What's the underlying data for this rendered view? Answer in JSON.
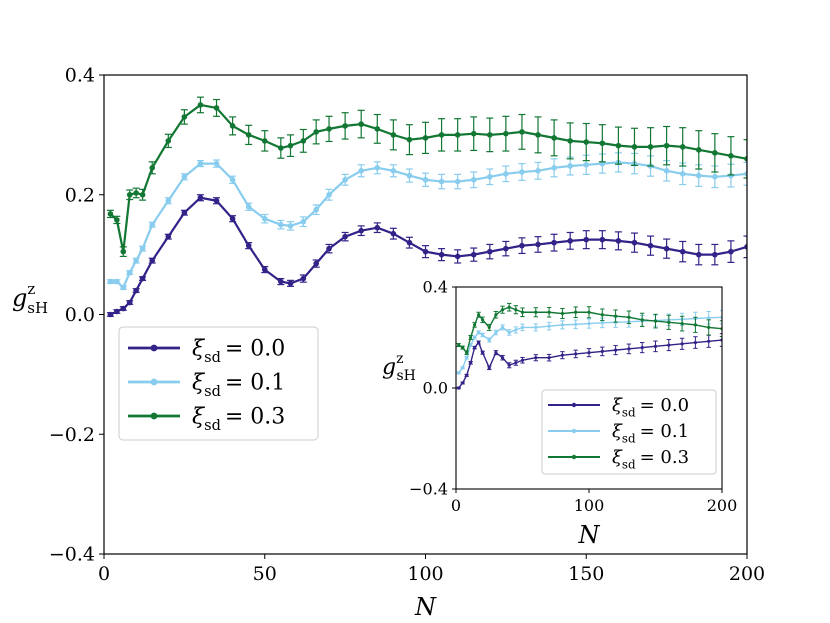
{
  "chart_data": [
    {
      "type": "line",
      "role": "main",
      "xlabel": "N",
      "ylabel": "g",
      "ylabel_sup": "z",
      "ylabel_sub": "sH",
      "xlim": [
        0,
        200
      ],
      "ylim": [
        -0.4,
        0.4
      ],
      "xticks": [
        0,
        50,
        100,
        150,
        200
      ],
      "xtick_labels": [
        "0",
        "50",
        "100",
        "150",
        "200"
      ],
      "yticks": [
        -0.4,
        -0.2,
        0.0,
        0.2,
        0.4
      ],
      "ytick_labels": [
        "−0.4",
        "−0.2",
        "0.0",
        "0.2",
        "0.4"
      ],
      "legend_location": "center-left",
      "series": [
        {
          "name": "ξ_sd = 0.0",
          "symbol": "ξ",
          "subscript": "sd",
          "value_text": "= 0.0",
          "color": "#332288",
          "x": [
            2,
            4,
            6,
            8,
            10,
            12,
            15,
            20,
            25,
            30,
            35,
            40,
            45,
            50,
            55,
            58,
            62,
            66,
            70,
            75,
            80,
            85,
            90,
            95,
            100,
            105,
            110,
            115,
            120,
            125,
            130,
            135,
            140,
            145,
            150,
            155,
            160,
            165,
            170,
            175,
            180,
            185,
            190,
            195,
            200
          ],
          "y": [
            0.0,
            0.005,
            0.01,
            0.02,
            0.04,
            0.06,
            0.09,
            0.13,
            0.17,
            0.195,
            0.19,
            0.16,
            0.115,
            0.075,
            0.055,
            0.052,
            0.06,
            0.085,
            0.11,
            0.13,
            0.14,
            0.145,
            0.135,
            0.12,
            0.105,
            0.1,
            0.097,
            0.1,
            0.105,
            0.11,
            0.115,
            0.117,
            0.12,
            0.123,
            0.125,
            0.125,
            0.123,
            0.12,
            0.115,
            0.11,
            0.105,
            0.1,
            0.1,
            0.105,
            0.113
          ],
          "err": [
            0.003,
            0.003,
            0.003,
            0.003,
            0.003,
            0.003,
            0.004,
            0.004,
            0.004,
            0.005,
            0.005,
            0.005,
            0.005,
            0.005,
            0.005,
            0.005,
            0.006,
            0.006,
            0.007,
            0.007,
            0.008,
            0.008,
            0.009,
            0.009,
            0.01,
            0.01,
            0.011,
            0.011,
            0.012,
            0.012,
            0.013,
            0.013,
            0.014,
            0.014,
            0.015,
            0.015,
            0.015,
            0.016,
            0.016,
            0.016,
            0.017,
            0.017,
            0.017,
            0.018,
            0.018
          ]
        },
        {
          "name": "ξ_sd = 0.1",
          "symbol": "ξ",
          "subscript": "sd",
          "value_text": "= 0.1",
          "color": "#88CCEE",
          "x": [
            2,
            4,
            6,
            8,
            10,
            12,
            15,
            20,
            25,
            30,
            35,
            40,
            45,
            50,
            55,
            58,
            62,
            66,
            70,
            75,
            80,
            85,
            90,
            95,
            100,
            105,
            110,
            115,
            120,
            125,
            130,
            135,
            140,
            145,
            150,
            155,
            160,
            165,
            170,
            175,
            180,
            185,
            190,
            195,
            200
          ],
          "y": [
            0.055,
            0.055,
            0.045,
            0.07,
            0.09,
            0.11,
            0.15,
            0.19,
            0.23,
            0.252,
            0.252,
            0.225,
            0.18,
            0.16,
            0.15,
            0.148,
            0.155,
            0.175,
            0.2,
            0.225,
            0.24,
            0.245,
            0.24,
            0.232,
            0.225,
            0.222,
            0.222,
            0.225,
            0.23,
            0.235,
            0.238,
            0.24,
            0.245,
            0.248,
            0.25,
            0.252,
            0.254,
            0.252,
            0.248,
            0.24,
            0.235,
            0.232,
            0.23,
            0.232,
            0.235
          ],
          "err": [
            0.003,
            0.003,
            0.003,
            0.003,
            0.004,
            0.004,
            0.004,
            0.005,
            0.005,
            0.005,
            0.006,
            0.006,
            0.006,
            0.007,
            0.007,
            0.007,
            0.008,
            0.008,
            0.009,
            0.009,
            0.01,
            0.01,
            0.01,
            0.011,
            0.011,
            0.012,
            0.012,
            0.013,
            0.013,
            0.013,
            0.014,
            0.014,
            0.015,
            0.015,
            0.016,
            0.016,
            0.016,
            0.017,
            0.017,
            0.017,
            0.018,
            0.018,
            0.018,
            0.019,
            0.019
          ]
        },
        {
          "name": "ξ_sd = 0.3",
          "symbol": "ξ",
          "subscript": "sd",
          "value_text": "= 0.3",
          "color": "#117733",
          "x": [
            2,
            4,
            6,
            8,
            10,
            12,
            15,
            20,
            25,
            30,
            35,
            40,
            45,
            50,
            55,
            58,
            62,
            66,
            70,
            75,
            80,
            85,
            90,
            95,
            100,
            105,
            110,
            115,
            120,
            125,
            130,
            135,
            140,
            145,
            150,
            155,
            160,
            165,
            170,
            175,
            180,
            185,
            190,
            195,
            200
          ],
          "y": [
            0.168,
            0.158,
            0.105,
            0.2,
            0.203,
            0.2,
            0.245,
            0.29,
            0.33,
            0.35,
            0.345,
            0.315,
            0.3,
            0.29,
            0.278,
            0.282,
            0.29,
            0.305,
            0.31,
            0.315,
            0.318,
            0.31,
            0.3,
            0.292,
            0.295,
            0.3,
            0.3,
            0.302,
            0.3,
            0.302,
            0.305,
            0.3,
            0.295,
            0.29,
            0.288,
            0.286,
            0.282,
            0.28,
            0.28,
            0.282,
            0.28,
            0.275,
            0.27,
            0.265,
            0.26
          ],
          "err": [
            0.006,
            0.006,
            0.008,
            0.008,
            0.008,
            0.009,
            0.01,
            0.011,
            0.012,
            0.013,
            0.014,
            0.015,
            0.016,
            0.017,
            0.017,
            0.018,
            0.019,
            0.02,
            0.021,
            0.022,
            0.023,
            0.024,
            0.025,
            0.025,
            0.026,
            0.027,
            0.027,
            0.028,
            0.028,
            0.029,
            0.029,
            0.03,
            0.03,
            0.03,
            0.031,
            0.031,
            0.031,
            0.031,
            0.032,
            0.032,
            0.032,
            0.032,
            0.032,
            0.032,
            0.032
          ]
        }
      ]
    },
    {
      "type": "line",
      "role": "inset",
      "xlabel": "N",
      "ylabel": "g",
      "ylabel_sup": "z",
      "ylabel_sub": "sH",
      "xlim": [
        0,
        200
      ],
      "ylim": [
        -0.4,
        0.4
      ],
      "xticks": [
        0,
        100,
        200
      ],
      "xtick_labels": [
        "0",
        "100",
        "200"
      ],
      "yticks": [
        -0.4,
        0.0,
        0.4
      ],
      "ytick_labels": [
        "−0.4",
        "0.0",
        "0.4"
      ],
      "legend_location": "lower-right",
      "series": [
        {
          "name": "ξ_sd = 0.0",
          "symbol": "ξ",
          "subscript": "sd",
          "value_text": "= 0.0",
          "color": "#332288",
          "x": [
            2,
            5,
            8,
            11,
            14,
            17,
            20,
            25,
            30,
            35,
            40,
            45,
            50,
            60,
            70,
            80,
            90,
            100,
            110,
            120,
            130,
            140,
            150,
            160,
            170,
            180,
            190,
            200
          ],
          "y": [
            0.0,
            0.02,
            0.05,
            0.1,
            0.16,
            0.18,
            0.14,
            0.08,
            0.14,
            0.12,
            0.09,
            0.1,
            0.11,
            0.12,
            0.12,
            0.13,
            0.135,
            0.14,
            0.145,
            0.15,
            0.155,
            0.16,
            0.165,
            0.17,
            0.175,
            0.18,
            0.185,
            0.19
          ],
          "err": [
            0.003,
            0.004,
            0.004,
            0.005,
            0.005,
            0.006,
            0.006,
            0.007,
            0.008,
            0.009,
            0.01,
            0.01,
            0.011,
            0.012,
            0.013,
            0.014,
            0.015,
            0.016,
            0.017,
            0.018,
            0.019,
            0.02,
            0.021,
            0.022,
            0.022,
            0.023,
            0.024,
            0.025
          ]
        },
        {
          "name": "ξ_sd = 0.1",
          "symbol": "ξ",
          "subscript": "sd",
          "value_text": "= 0.1",
          "color": "#88CCEE",
          "x": [
            2,
            5,
            8,
            11,
            14,
            17,
            20,
            25,
            30,
            35,
            40,
            45,
            50,
            60,
            70,
            80,
            90,
            100,
            110,
            120,
            130,
            140,
            150,
            160,
            170,
            180,
            190,
            200
          ],
          "y": [
            0.06,
            0.08,
            0.12,
            0.17,
            0.2,
            0.22,
            0.21,
            0.19,
            0.22,
            0.24,
            0.22,
            0.23,
            0.24,
            0.24,
            0.245,
            0.25,
            0.252,
            0.255,
            0.258,
            0.26,
            0.262,
            0.265,
            0.267,
            0.27,
            0.272,
            0.275,
            0.278,
            0.28
          ],
          "err": [
            0.004,
            0.004,
            0.005,
            0.005,
            0.006,
            0.006,
            0.007,
            0.008,
            0.009,
            0.01,
            0.011,
            0.012,
            0.013,
            0.014,
            0.015,
            0.016,
            0.017,
            0.018,
            0.019,
            0.02,
            0.021,
            0.022,
            0.022,
            0.023,
            0.024,
            0.025,
            0.025,
            0.026
          ]
        },
        {
          "name": "ξ_sd = 0.3",
          "symbol": "ξ",
          "subscript": "sd",
          "value_text": "= 0.3",
          "color": "#117733",
          "x": [
            2,
            5,
            8,
            11,
            14,
            17,
            20,
            25,
            30,
            35,
            40,
            45,
            50,
            60,
            70,
            80,
            90,
            100,
            110,
            120,
            130,
            140,
            150,
            160,
            170,
            180,
            190,
            200
          ],
          "y": [
            0.17,
            0.16,
            0.14,
            0.2,
            0.25,
            0.29,
            0.27,
            0.24,
            0.29,
            0.31,
            0.32,
            0.31,
            0.3,
            0.3,
            0.3,
            0.295,
            0.3,
            0.3,
            0.29,
            0.285,
            0.28,
            0.27,
            0.265,
            0.26,
            0.255,
            0.25,
            0.24,
            0.235
          ],
          "err": [
            0.006,
            0.006,
            0.007,
            0.008,
            0.009,
            0.01,
            0.011,
            0.012,
            0.013,
            0.014,
            0.015,
            0.016,
            0.017,
            0.018,
            0.019,
            0.02,
            0.021,
            0.022,
            0.023,
            0.024,
            0.025,
            0.026,
            0.027,
            0.028,
            0.029,
            0.03,
            0.03,
            0.031
          ]
        }
      ]
    }
  ]
}
